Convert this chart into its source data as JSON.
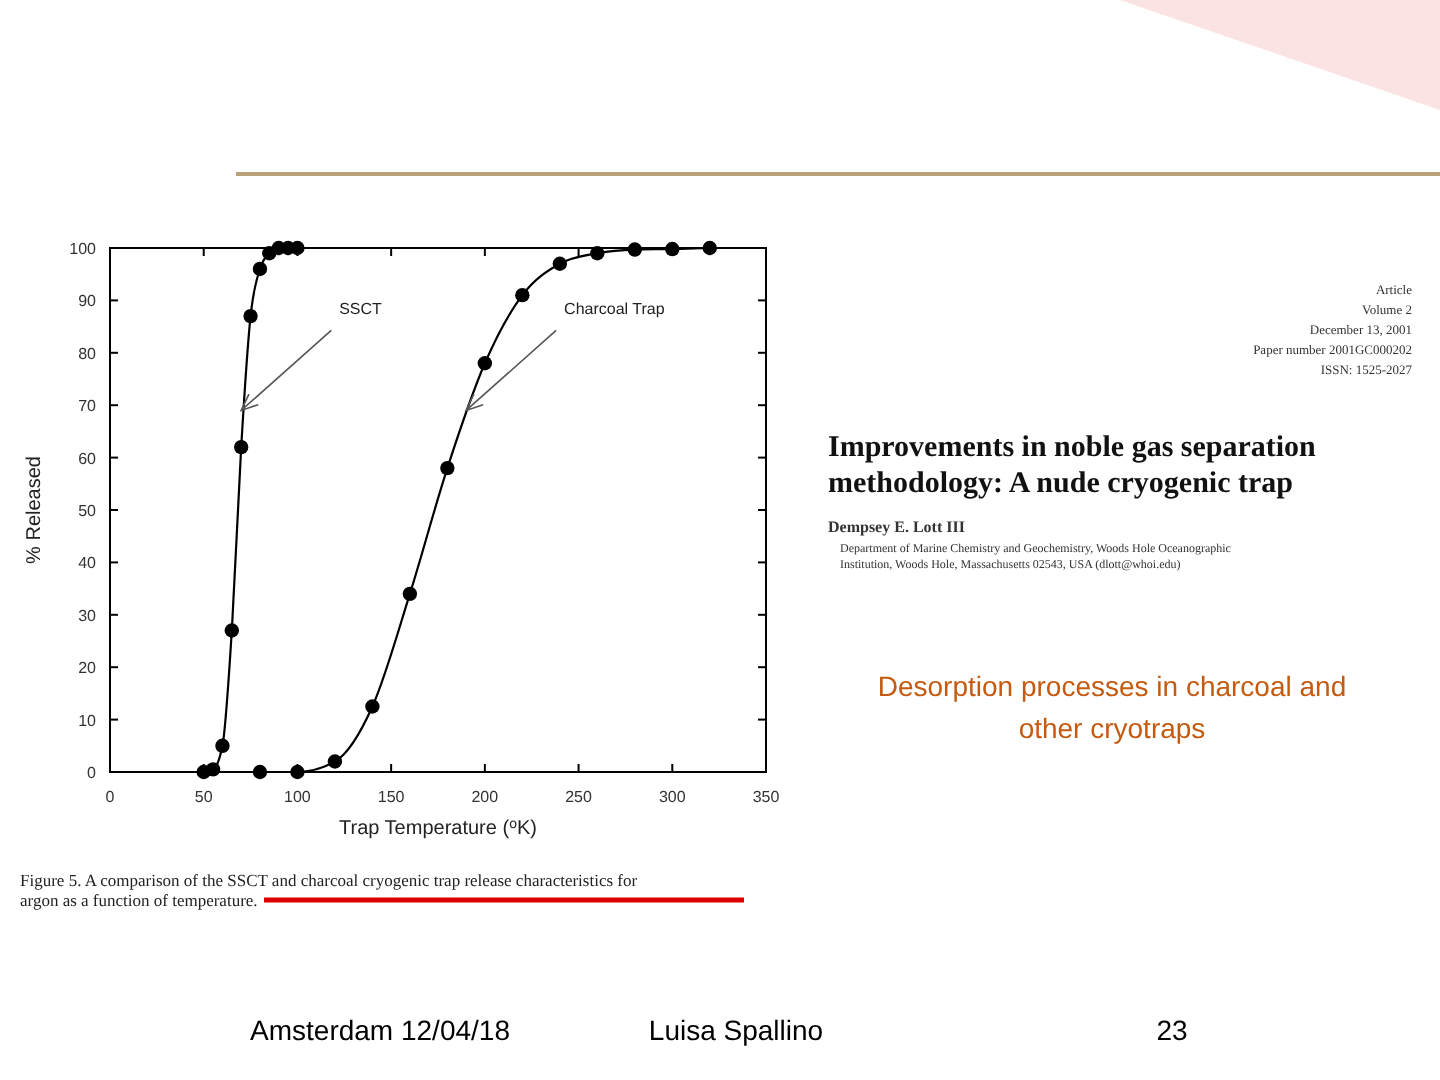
{
  "chart_data": {
    "type": "line",
    "xlabel": "Trap Temperature ($^{o}$K)",
    "ylabel": "% Released",
    "xlim": [
      0,
      350
    ],
    "xticks": [
      0,
      50,
      100,
      150,
      200,
      250,
      300,
      350
    ],
    "ylim": [
      0,
      100
    ],
    "yticks": [
      0,
      10,
      20,
      30,
      40,
      50,
      60,
      70,
      80,
      90,
      100
    ],
    "grid": false,
    "marker": "circle",
    "line_style": "solid",
    "series": [
      {
        "color": "#000000",
        "x": [
          50,
          55,
          60,
          65,
          70,
          75,
          80,
          85,
          90,
          95,
          100
        ],
        "values": [
          0,
          0.5,
          5,
          27,
          62,
          87,
          96,
          99,
          100,
          100,
          100
        ]
      },
      {
        "color": "#000000",
        "x": [
          80,
          100,
          120,
          140,
          160,
          180,
          200,
          220,
          240,
          260,
          280,
          300,
          320
        ],
        "values": [
          0,
          0,
          2,
          12.5,
          34,
          58,
          78,
          91,
          97,
          99,
          99.7,
          99.8,
          100
        ]
      }
    ],
    "annotations": [
      {
        "text": "SSCT",
        "x": 70,
        "y": 69
      },
      {
        "text": "Charcoal Trap",
        "x": 190,
        "y": 69
      },
      "Improvements in noble gas separation methodology: A nude cryogenic trap",
      "Dempsey E. Lott III",
      "Department of Marine Chemistry and Geochemistry, Woods Hole Oceanographic Institution, Woods Hole, Massachusetts 02543, USA (dlott@whoi.edu)",
      "Desorption processes in charcoal and other cryotraps",
      "Figure 5. A comparison of the SSCT and charcoal cryogenic trap release characteristics for argon as a function of temperature.",
      "Amsterdam 12/04/18",
      "Luisa Spallino",
      "23",
      "Article",
      "Volume 2",
      "December 13, 2001",
      "Paper number 2001GC000202",
      "ISSN: 1525-2027"
    ]
  }
}
